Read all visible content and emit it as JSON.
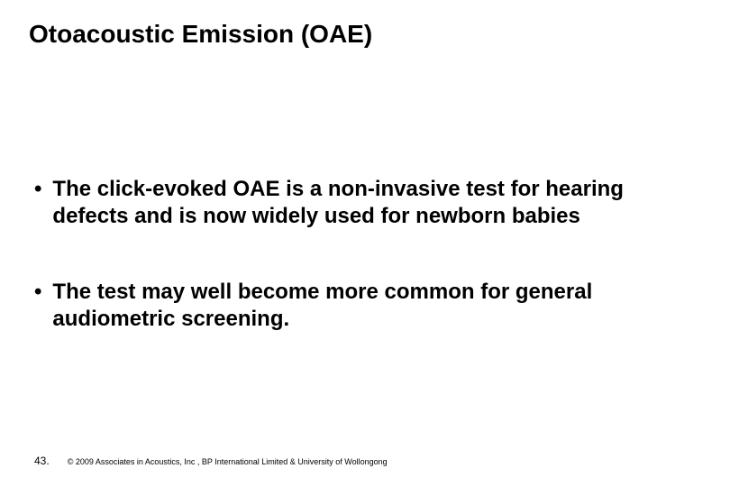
{
  "title": "Otoacoustic Emission (OAE)",
  "bullets": [
    "The click-evoked OAE is a non-invasive test for hearing defects and is now widely used for newborn babies",
    "The test may well become more common for general audiometric screening."
  ],
  "page_number": "43.",
  "copyright": "© 2009 Associates in Acoustics, Inc , BP International Limited & University of Wollongong"
}
